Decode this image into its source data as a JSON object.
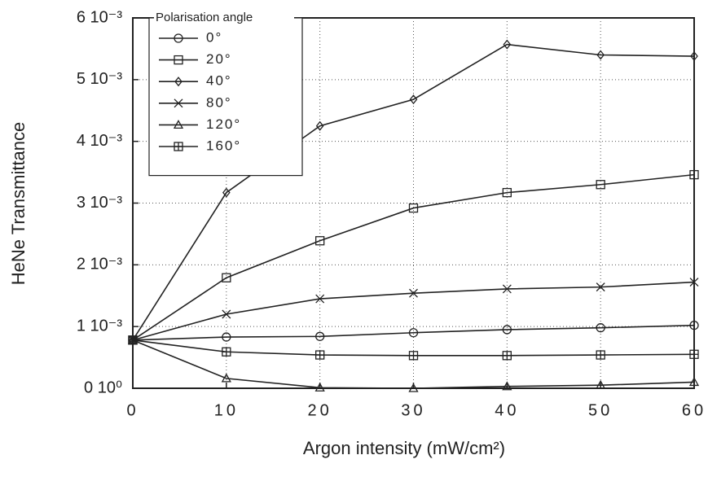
{
  "chart_data": {
    "type": "line",
    "x_label": "Argon intensity  (mW/cm²)",
    "y_label": "HeNe Transmittance",
    "legend_title": "Polarisation angle",
    "x": [
      0,
      10,
      20,
      30,
      40,
      50,
      60
    ],
    "xlim": [
      0,
      60
    ],
    "xticks": [
      0,
      10,
      20,
      30,
      40,
      50,
      60
    ],
    "ylim": [
      0,
      0.006
    ],
    "yticks": [
      {
        "value": 0,
        "label": "0 10⁰"
      },
      {
        "value": 0.001,
        "label": "1 10⁻³"
      },
      {
        "value": 0.002,
        "label": "2 10⁻³"
      },
      {
        "value": 0.003,
        "label": "3 10⁻³"
      },
      {
        "value": 0.004,
        "label": "4 10⁻³"
      },
      {
        "value": 0.005,
        "label": "5 10⁻³"
      },
      {
        "value": 0.006,
        "label": "6 10⁻³"
      }
    ],
    "grid": true,
    "legend": "upper left",
    "series": [
      {
        "name": "0°",
        "color": "#222222",
        "marker": "circle",
        "values": [
          0.00078,
          0.00083,
          0.00084,
          0.0009,
          0.00095,
          0.00098,
          0.00102
        ]
      },
      {
        "name": "20°",
        "color": "#222222",
        "marker": "square",
        "values": [
          0.00078,
          0.00179,
          0.00239,
          0.00292,
          0.00317,
          0.0033,
          0.00346
        ]
      },
      {
        "name": "40°",
        "color": "#222222",
        "marker": "diamond",
        "values": [
          0.00078,
          0.00317,
          0.00425,
          0.00468,
          0.00557,
          0.0054,
          0.00538
        ]
      },
      {
        "name": "80°",
        "color": "#222222",
        "marker": "cross",
        "values": [
          0.00078,
          0.0012,
          0.00145,
          0.00154,
          0.00161,
          0.00164,
          0.00172
        ]
      },
      {
        "name": "120°",
        "color": "#222222",
        "marker": "triangle",
        "values": [
          0.00078,
          0.00016,
          1e-05,
          0.0,
          3e-05,
          5e-05,
          0.0001
        ]
      },
      {
        "name": "160°",
        "color": "#222222",
        "marker": "square-cross",
        "values": [
          0.00078,
          0.00059,
          0.00054,
          0.00053,
          0.00053,
          0.00054,
          0.00055
        ]
      }
    ]
  }
}
